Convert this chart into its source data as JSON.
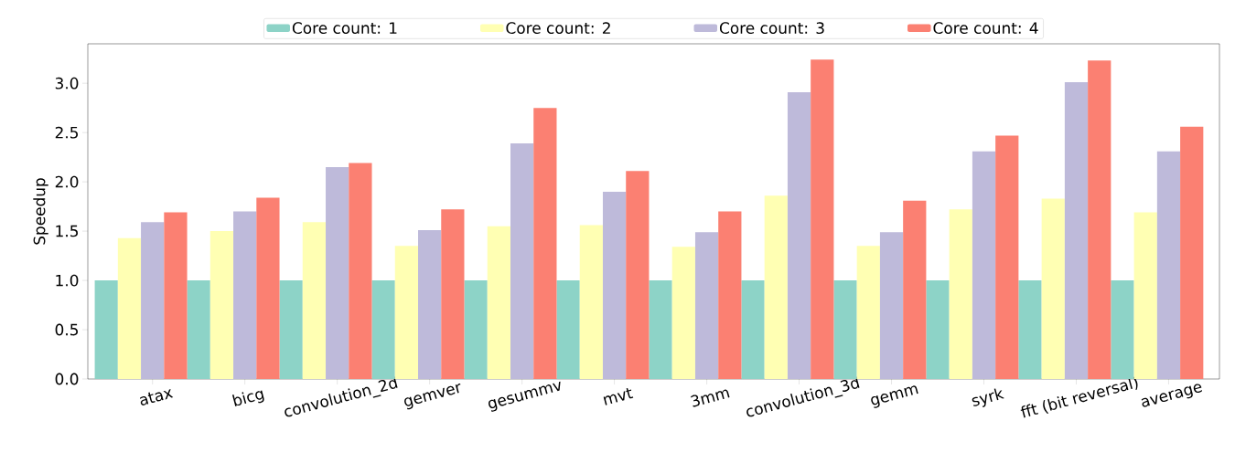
{
  "chart_data": {
    "type": "bar",
    "ylabel": "Speedup",
    "categories": [
      "atax",
      "bicg",
      "convolution_2d",
      "gemver",
      "gesummv",
      "mvt",
      "3mm",
      "convolution_3d",
      "gemm",
      "syrk",
      "fft (bit reversal)",
      "average"
    ],
    "series": [
      {
        "name": "Core count: 1",
        "color": "#8dd3c7",
        "values": [
          1.0,
          1.0,
          1.0,
          1.0,
          1.0,
          1.0,
          1.0,
          1.0,
          1.0,
          1.0,
          1.0,
          1.0
        ]
      },
      {
        "name": "Core count: 2",
        "color": "#ffffb3",
        "values": [
          1.43,
          1.5,
          1.59,
          1.35,
          1.55,
          1.56,
          1.34,
          1.86,
          1.35,
          1.72,
          1.83,
          1.69
        ]
      },
      {
        "name": "Core count: 3",
        "color": "#bebada",
        "values": [
          1.59,
          1.7,
          2.15,
          1.51,
          2.39,
          1.9,
          1.49,
          2.91,
          1.49,
          2.31,
          3.01,
          2.31
        ]
      },
      {
        "name": "Core count: 4",
        "color": "#fb8072",
        "values": [
          1.69,
          1.84,
          2.19,
          1.72,
          2.75,
          2.11,
          1.7,
          3.24,
          1.81,
          2.47,
          3.23,
          2.56
        ]
      }
    ],
    "ylim": [
      0,
      3.4
    ],
    "yticks": [
      {
        "value": 0,
        "label": "0.0"
      },
      {
        "value": 0.5,
        "label": "0.5"
      },
      {
        "value": 1,
        "label": "1.0"
      },
      {
        "value": 1.5,
        "label": "1.5"
      },
      {
        "value": 2,
        "label": "2.0"
      },
      {
        "value": 2.5,
        "label": "2.5"
      },
      {
        "value": 3,
        "label": "3.0"
      }
    ],
    "legend": "top",
    "grid": false
  }
}
